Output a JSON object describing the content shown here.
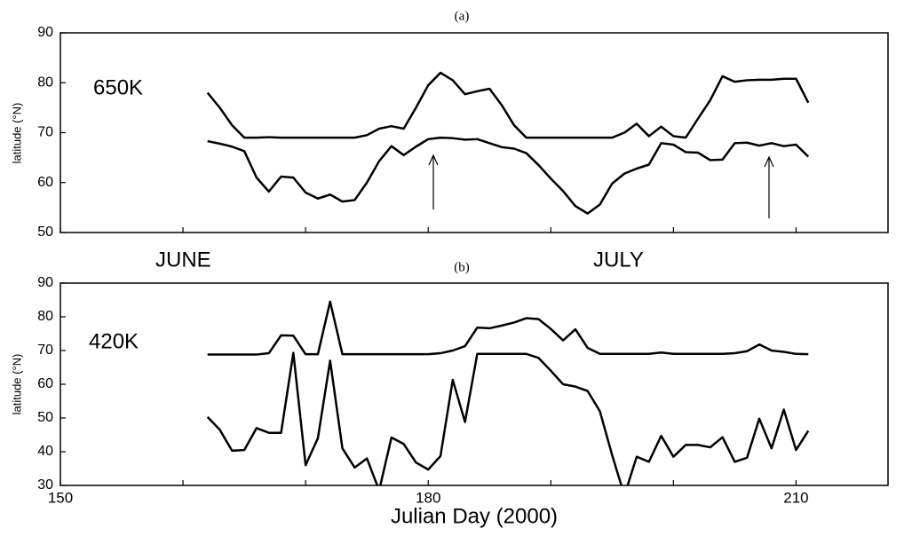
{
  "chart_data": [
    {
      "type": "line",
      "title": "(a)",
      "ylabel": "latitude (°N)",
      "annotations": [
        "650K",
        "JUNE",
        "JULY"
      ],
      "xlim": [
        150,
        217.5
      ],
      "xticks": [
        150,
        160,
        170,
        180,
        190,
        200,
        210
      ],
      "show_xtick_labels": false,
      "ylim": [
        50,
        90
      ],
      "yticks": [
        50,
        60,
        70,
        80,
        90
      ],
      "x": [
        162,
        163,
        164,
        165,
        166,
        167,
        168,
        169,
        170,
        171,
        172,
        173,
        174,
        175,
        176,
        177,
        178,
        179,
        180,
        181,
        182,
        183,
        184,
        185,
        186,
        187,
        188,
        189,
        190,
        191,
        192,
        193,
        194,
        195,
        196,
        197,
        198,
        199,
        200,
        201,
        202,
        203,
        204,
        205,
        206,
        207,
        208,
        209,
        210,
        211
      ],
      "series": [
        {
          "color": "#000000",
          "values": [
            78,
            75,
            71.5,
            69,
            69,
            69.1,
            69,
            69,
            69,
            69,
            69,
            69,
            69,
            69.5,
            70.8,
            71.3,
            70.8,
            75,
            79.5,
            82,
            80.5,
            77.7,
            78.3,
            78.8,
            75.5,
            71.5,
            69,
            69,
            69,
            69,
            69,
            69,
            69,
            69,
            70,
            71.8,
            69.3,
            71.2,
            69.3,
            69,
            72.8,
            76.5,
            81.3,
            80.2,
            80.5,
            80.6,
            80.6,
            80.8,
            80.8,
            76
          ]
        },
        {
          "color": "#000000",
          "values": [
            68.3,
            67.8,
            67.2,
            66.3,
            61,
            58.2,
            61.2,
            61,
            58,
            56.8,
            57.6,
            56.2,
            56.5,
            60,
            64.3,
            67.3,
            65.5,
            67.2,
            68.7,
            69,
            68.9,
            68.6,
            68.7,
            67.9,
            67.1,
            66.8,
            65.9,
            63.5,
            60.8,
            58.3,
            55.3,
            53.8,
            55.6,
            59.8,
            61.8,
            62.8,
            63.6,
            67.9,
            67.6,
            66.1,
            66,
            64.5,
            64.6,
            67.9,
            68,
            67.4,
            67.9,
            67.3,
            67.6,
            65.2
          ]
        }
      ]
    },
    {
      "type": "line",
      "title": "(b)",
      "ylabel": "latitude (°N)",
      "annotations": [
        "420K"
      ],
      "xlabel": "Julian Day (2000)",
      "xlim": [
        150,
        217.5
      ],
      "xticks": [
        150,
        180,
        210
      ],
      "xminorticks": [
        160,
        170,
        190,
        200
      ],
      "show_xtick_labels": true,
      "ylim": [
        30,
        90
      ],
      "yticks": [
        30,
        40,
        50,
        60,
        70,
        80,
        90
      ],
      "x": [
        162,
        163,
        164,
        165,
        166,
        167,
        168,
        169,
        170,
        171,
        172,
        173,
        174,
        175,
        176,
        177,
        178,
        179,
        180,
        181,
        182,
        183,
        184,
        185,
        186,
        187,
        188,
        189,
        190,
        191,
        192,
        193,
        194,
        195,
        196,
        197,
        198,
        199,
        200,
        201,
        202,
        203,
        204,
        205,
        206,
        207,
        208,
        209,
        210,
        211
      ],
      "series": [
        {
          "color": "#000000",
          "values": [
            68.8,
            68.8,
            68.8,
            68.8,
            68.8,
            69.2,
            74.5,
            74.4,
            68.9,
            68.9,
            84.5,
            68.9,
            68.9,
            68.9,
            68.9,
            68.9,
            68.9,
            68.9,
            68.9,
            69.2,
            70,
            71.3,
            76.8,
            76.6,
            77.4,
            78.3,
            79.6,
            79.3,
            76.4,
            73,
            76.3,
            70.8,
            69,
            69,
            69,
            69,
            69,
            69.4,
            69,
            69,
            69,
            69,
            69,
            69.2,
            69.8,
            71.8,
            70,
            69.6,
            69,
            68.9
          ]
        },
        {
          "color": "#000000",
          "values": [
            50.3,
            46.5,
            40.3,
            40.5,
            47,
            45.6,
            45.6,
            69.3,
            36,
            44,
            67,
            41,
            35.3,
            38,
            28.5,
            44.2,
            42.3,
            36.8,
            34.7,
            38.7,
            61.3,
            48.8,
            69,
            69,
            69,
            69,
            69,
            67.8,
            64,
            60,
            59.3,
            58,
            52,
            39,
            27,
            38.5,
            37,
            44.7,
            38.5,
            42,
            42,
            41.3,
            44.3,
            37,
            38.2,
            49.8,
            41,
            52.5,
            40.5,
            46.2
          ]
        }
      ]
    }
  ]
}
